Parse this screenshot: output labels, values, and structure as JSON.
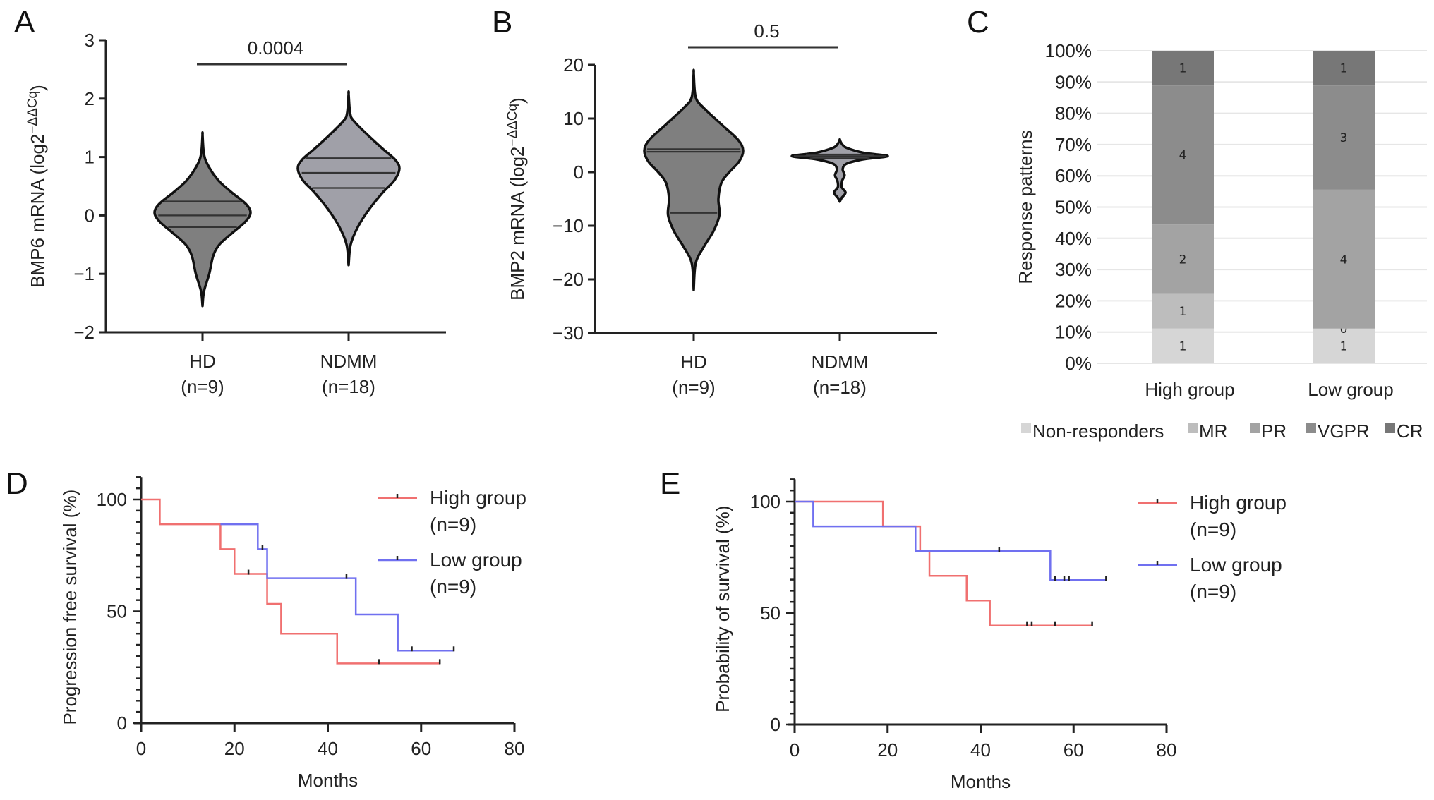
{
  "panels": {
    "A": "A",
    "B": "B",
    "C": "C",
    "D": "D",
    "E": "E"
  },
  "chart_data": [
    {
      "id": "A",
      "type": "violin",
      "ylabel": "BMP6 mRNA (log2−ΔΔCq)",
      "ylabel_main": "BMP6 mRNA (log2",
      "ylabel_sup": "−ΔΔCq",
      "ylabel_close": ")",
      "ylim": [
        -2,
        3
      ],
      "yticks": [
        -2,
        -1,
        0,
        1,
        2,
        3
      ],
      "ytick_labels": [
        "−2",
        "−1",
        "0",
        "1",
        "2",
        "3"
      ],
      "categories": [
        "HD",
        "NDMM"
      ],
      "category_n": [
        "(n=9)",
        "(n=18)"
      ],
      "pvalue": "0.0004",
      "violins": [
        {
          "name": "HD",
          "fill": "#7f7f7f",
          "min": -1.55,
          "max": 1.38,
          "q1": -0.2,
          "median": 0.0,
          "q3": 0.24,
          "profile": [
            [
              -1.55,
              0
            ],
            [
              -1.3,
              0.03
            ],
            [
              -1.0,
              0.14
            ],
            [
              -0.7,
              0.22
            ],
            [
              -0.5,
              0.35
            ],
            [
              -0.3,
              0.62
            ],
            [
              -0.1,
              0.9
            ],
            [
              0.05,
              1.0
            ],
            [
              0.2,
              0.9
            ],
            [
              0.4,
              0.6
            ],
            [
              0.6,
              0.33
            ],
            [
              0.85,
              0.12
            ],
            [
              1.05,
              0.03
            ],
            [
              1.38,
              0
            ]
          ]
        },
        {
          "name": "NDMM",
          "fill": "#a0a0a8",
          "min": -0.85,
          "max": 2.08,
          "q1": 0.47,
          "median": 0.73,
          "q3": 0.98,
          "profile": [
            [
              -0.85,
              0
            ],
            [
              -0.5,
              0.04
            ],
            [
              -0.2,
              0.18
            ],
            [
              0.1,
              0.4
            ],
            [
              0.4,
              0.68
            ],
            [
              0.6,
              0.9
            ],
            [
              0.8,
              1.0
            ],
            [
              0.95,
              0.92
            ],
            [
              1.15,
              0.66
            ],
            [
              1.4,
              0.35
            ],
            [
              1.62,
              0.1
            ],
            [
              1.75,
              0.03
            ],
            [
              2.08,
              0
            ]
          ]
        }
      ]
    },
    {
      "id": "B",
      "type": "violin",
      "ylabel": "BMP2 mRNA (log2−ΔΔCq)",
      "ylabel_main": "BMP2 mRNA (log2",
      "ylabel_sup": "−ΔΔCq",
      "ylabel_close": ")",
      "ylim": [
        -30,
        20
      ],
      "yticks": [
        -30,
        -20,
        -10,
        0,
        10,
        20
      ],
      "ytick_labels": [
        "−30",
        "−20",
        "−10",
        "0",
        "10",
        "20"
      ],
      "categories": [
        "HD",
        "NDMM"
      ],
      "category_n": [
        "(n=9)",
        "(n=18)"
      ],
      "pvalue": "0.5",
      "violins": [
        {
          "name": "HD",
          "fill": "#7f7f7f",
          "min": -22,
          "max": 18.5,
          "q1": -7.6,
          "median": 3.8,
          "q3": 4.3,
          "profile": [
            [
              -22,
              0
            ],
            [
              -17,
              0.04
            ],
            [
              -14,
              0.2
            ],
            [
              -11,
              0.4
            ],
            [
              -8,
              0.52
            ],
            [
              -5,
              0.5
            ],
            [
              -2,
              0.56
            ],
            [
              0,
              0.72
            ],
            [
              2,
              0.92
            ],
            [
              4,
              1.0
            ],
            [
              6,
              0.9
            ],
            [
              9,
              0.55
            ],
            [
              12,
              0.2
            ],
            [
              14,
              0.04
            ],
            [
              18.5,
              0
            ]
          ]
        },
        {
          "name": "NDMM",
          "fill": "#a0a0a8",
          "min": -5.5,
          "max": 6,
          "q1": 2.6,
          "median": 3.0,
          "q3": 3.3,
          "profile": [
            [
              -5.5,
              0
            ],
            [
              -4.8,
              0.04
            ],
            [
              -3.8,
              0.12
            ],
            [
              -2.8,
              0.04
            ],
            [
              -1.6,
              0.05
            ],
            [
              -0.6,
              0.1
            ],
            [
              0.6,
              0.06
            ],
            [
              1.6,
              0.15
            ],
            [
              2.4,
              0.5
            ],
            [
              3.0,
              1.0
            ],
            [
              3.6,
              0.5
            ],
            [
              4.5,
              0.15
            ],
            [
              5.2,
              0.05
            ],
            [
              6,
              0
            ]
          ]
        }
      ]
    },
    {
      "id": "C",
      "type": "bar",
      "stacked": true,
      "percent": true,
      "ylabel": "Response patterns",
      "ylim": [
        0,
        100
      ],
      "yticks": [
        0,
        10,
        20,
        30,
        40,
        50,
        60,
        70,
        80,
        90,
        100
      ],
      "ytick_labels": [
        "0%",
        "10%",
        "20%",
        "30%",
        "40%",
        "50%",
        "60%",
        "70%",
        "80%",
        "90%",
        "100%"
      ],
      "grid": true,
      "categories": [
        "High group",
        "Low group"
      ],
      "legend_position": "bottom",
      "series": [
        {
          "name": "Non-responders",
          "color": "#d6d6d6",
          "values": [
            1,
            1
          ]
        },
        {
          "name": "MR",
          "color": "#bdbdbd",
          "values": [
            1,
            0
          ]
        },
        {
          "name": "PR",
          "color": "#a3a3a3",
          "values": [
            2,
            4
          ]
        },
        {
          "name": "VGPR",
          "color": "#8c8c8c",
          "values": [
            4,
            3
          ]
        },
        {
          "name": "CR",
          "color": "#777777",
          "values": [
            1,
            1
          ]
        }
      ]
    },
    {
      "id": "D",
      "type": "line",
      "subtype": "kaplan-meier",
      "xlabel": "Months",
      "ylabel": "Progression free survival (%)",
      "xlim": [
        0,
        80
      ],
      "ylim": [
        0,
        110
      ],
      "xticks": [
        0,
        20,
        40,
        60,
        80
      ],
      "yticks": [
        0,
        50,
        100
      ],
      "legend_position": "top-right",
      "series": [
        {
          "name": "High group",
          "n_label": "(n=9)",
          "color": "#f07070",
          "steps": [
            [
              0,
              100
            ],
            [
              4,
              88.9
            ],
            [
              17,
              77.8
            ],
            [
              20,
              66.7
            ],
            [
              27,
              53.3
            ],
            [
              30,
              40.0
            ],
            [
              42,
              26.7
            ]
          ],
          "end": 64,
          "censored": [
            [
              23,
              66.7
            ],
            [
              51,
              26.7
            ],
            [
              64,
              26.7
            ]
          ]
        },
        {
          "name": "Low group",
          "n_label": "(n=9)",
          "color": "#7070f0",
          "steps": [
            [
              17,
              88.9
            ],
            [
              25,
              77.8
            ],
            [
              27,
              64.8
            ],
            [
              46,
              48.6
            ],
            [
              55,
              32.4
            ]
          ],
          "end": 67,
          "censored": [
            [
              26,
              77.8
            ],
            [
              44,
              64.8
            ],
            [
              58,
              32.4
            ],
            [
              67,
              32.4
            ]
          ]
        }
      ]
    },
    {
      "id": "E",
      "type": "line",
      "subtype": "kaplan-meier",
      "xlabel": "Months",
      "ylabel": "Probability of survival (%)",
      "xlim": [
        0,
        80
      ],
      "ylim": [
        0,
        110
      ],
      "xticks": [
        0,
        20,
        40,
        60,
        80
      ],
      "yticks": [
        0,
        50,
        100
      ],
      "legend_position": "top-right",
      "series": [
        {
          "name": "High group",
          "n_label": "(n=9)",
          "color": "#f07070",
          "steps": [
            [
              0,
              100
            ],
            [
              19,
              88.9
            ],
            [
              27,
              77.8
            ],
            [
              29,
              66.7
            ],
            [
              37,
              55.6
            ],
            [
              42,
              44.4
            ]
          ],
          "end": 64,
          "censored": [
            [
              50,
              44.4
            ],
            [
              51,
              44.4
            ],
            [
              56,
              44.4
            ],
            [
              64,
              44.4
            ]
          ]
        },
        {
          "name": "Low group",
          "n_label": "(n=9)",
          "color": "#7070f0",
          "steps": [
            [
              0,
              100
            ],
            [
              4,
              88.9
            ],
            [
              26,
              77.8
            ],
            [
              55,
              64.8
            ]
          ],
          "end": 67,
          "censored": [
            [
              44,
              77.8
            ],
            [
              56,
              64.8
            ],
            [
              58,
              64.8
            ],
            [
              59,
              64.8
            ],
            [
              67,
              64.8
            ]
          ]
        }
      ]
    }
  ]
}
